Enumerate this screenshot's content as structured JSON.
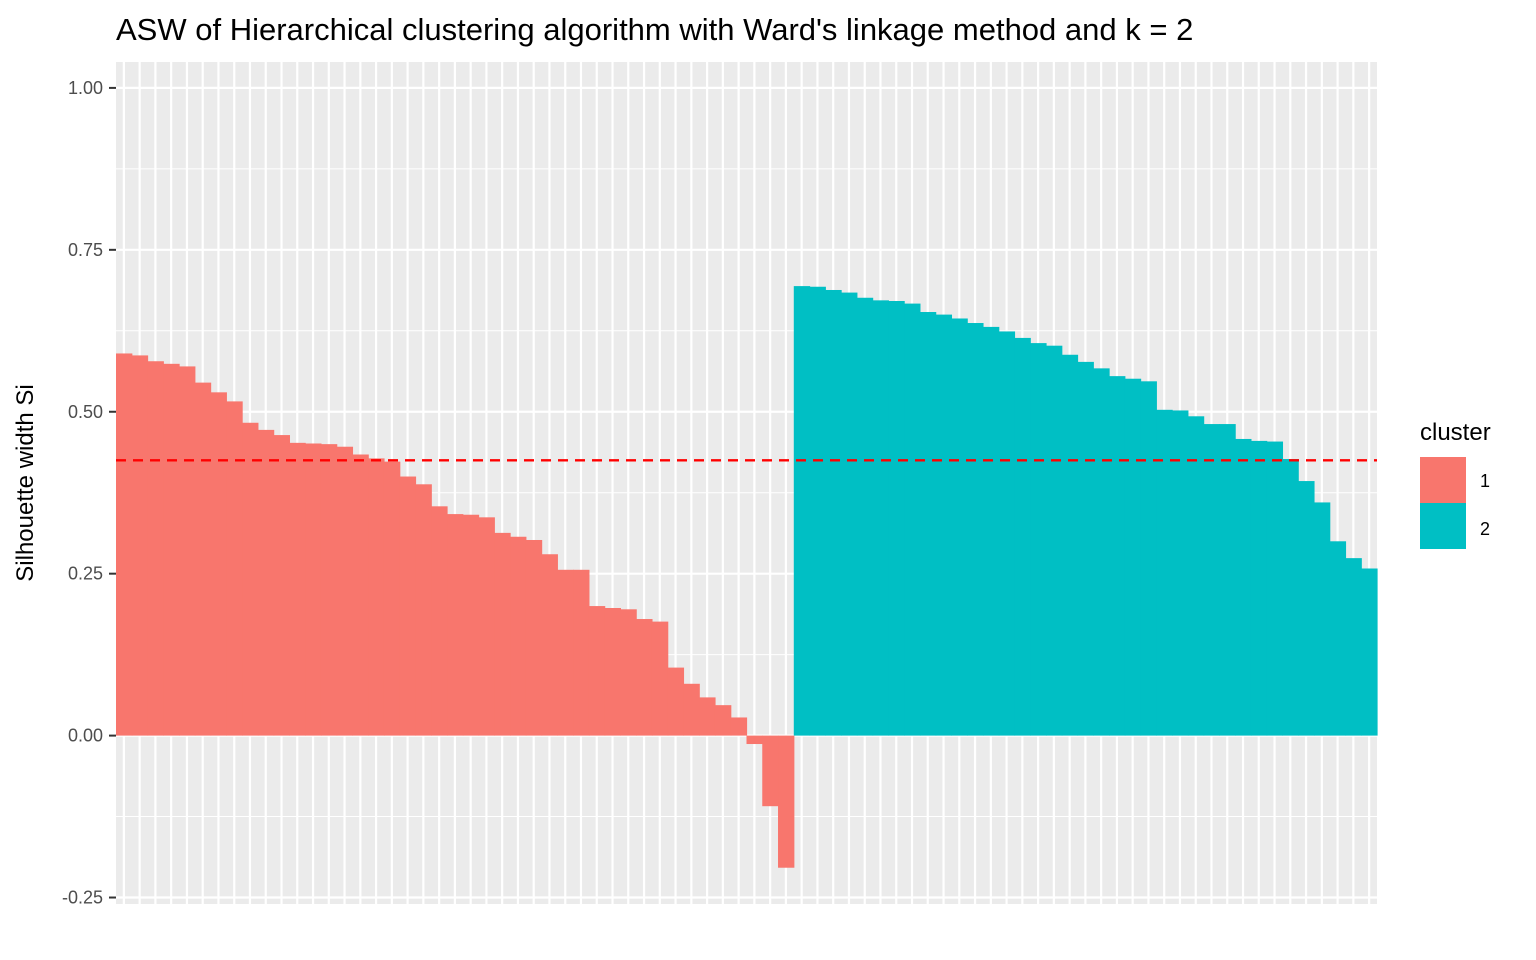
{
  "chart_data": {
    "type": "bar",
    "title": "ASW of Hierarchical clustering algorithm with Ward's linkage method and k = 2",
    "xlabel": "",
    "ylabel": "Silhouette width Si",
    "ylim": [
      -0.26,
      1.04
    ],
    "yticks": [
      1.0,
      0.75,
      0.5,
      0.25,
      0.0,
      -0.25
    ],
    "ytick_labels": [
      "1.00",
      "0.75",
      "0.50",
      "0.25",
      "0.00",
      "-0.25"
    ],
    "grid": true,
    "average_line": {
      "value": 0.425,
      "color": "#ff0000",
      "style": "dashed"
    },
    "legend": {
      "title": "cluster",
      "placement": "right"
    },
    "series": [
      {
        "name": "1",
        "color": "#F8766D",
        "values": [
          0.59,
          0.587,
          0.578,
          0.574,
          0.57,
          0.545,
          0.53,
          0.516,
          0.483,
          0.472,
          0.464,
          0.452,
          0.451,
          0.45,
          0.446,
          0.434,
          0.428,
          0.423,
          0.4,
          0.388,
          0.354,
          0.342,
          0.341,
          0.337,
          0.313,
          0.307,
          0.302,
          0.28,
          0.256,
          0.256,
          0.2,
          0.197,
          0.195,
          0.18,
          0.176,
          0.105,
          0.08,
          0.059,
          0.047,
          0.028,
          -0.013,
          -0.109,
          -0.204
        ]
      },
      {
        "name": "2",
        "color": "#00BFC4",
        "values": [
          0.694,
          0.693,
          0.688,
          0.684,
          0.676,
          0.672,
          0.671,
          0.667,
          0.654,
          0.65,
          0.644,
          0.637,
          0.631,
          0.624,
          0.614,
          0.606,
          0.602,
          0.588,
          0.577,
          0.567,
          0.555,
          0.551,
          0.547,
          0.503,
          0.502,
          0.493,
          0.481,
          0.481,
          0.458,
          0.455,
          0.454,
          0.427,
          0.393,
          0.36,
          0.3,
          0.274,
          0.258
        ]
      }
    ]
  }
}
